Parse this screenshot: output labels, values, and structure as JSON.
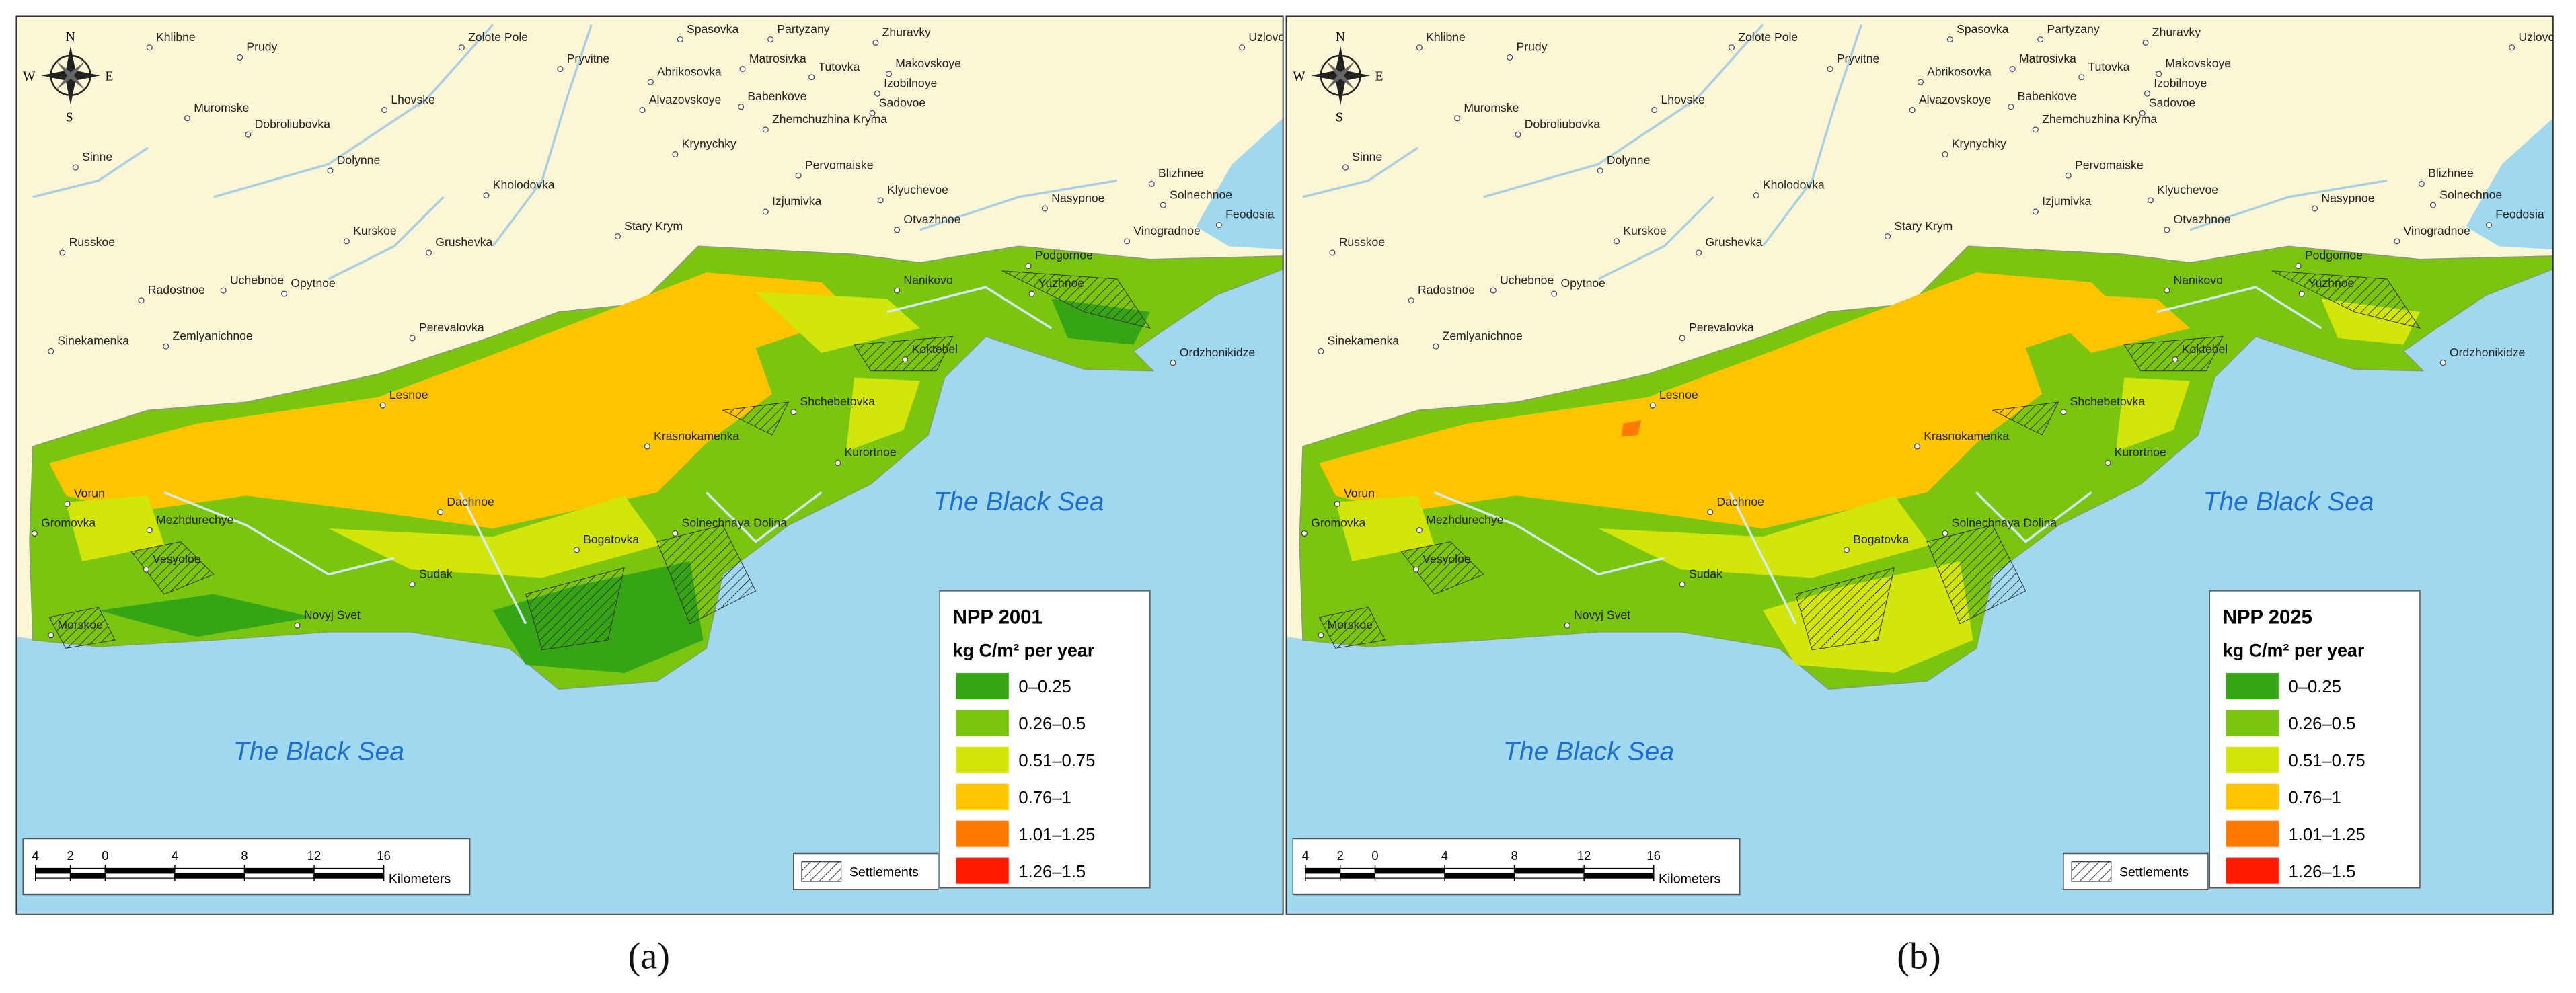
{
  "map": {
    "places": [
      "Khlibne",
      "Prudy",
      "Zolote Pole",
      "Spasovka",
      "Partyzany",
      "Zhuravky",
      "Uzlovoe",
      "Pryvitne",
      "Abrikosovka",
      "Matrosivka",
      "Tutovka",
      "Makovskoye",
      "Izobilnoye",
      "Muromske",
      "Dobroliubovka",
      "Alvazovskoye",
      "Babenkove",
      "Sadovoe",
      "Zhemchuzhina Kryma",
      "Lhovske",
      "Sinne",
      "Dolynne",
      "Krynychky",
      "Pervomaiske",
      "Blizhnee",
      "Kholodovka",
      "Izjumivka",
      "Klyuchevoe",
      "Nasypnoe",
      "Solnechnoe",
      "Otvazhnoe",
      "Stary Krym",
      "Feodosia",
      "Russkoe",
      "Kurskoe",
      "Vinogradnoe",
      "Grushevka",
      "Uchebnoe",
      "Opytnoe",
      "Radostnoe",
      "Podgornoe",
      "Nanikovo",
      "Yuzhnoe",
      "Sinekamenka",
      "Zemlyanichnoe",
      "Perevalovka",
      "Koktebel",
      "Ordzhonikidze",
      "Lesnoe",
      "Shchebetovka",
      "Krasnokamenka",
      "Kurortnoe",
      "Vorun",
      "Dachnoe",
      "Mezhdurechye",
      "Gromovka",
      "Bogatovka",
      "Solnechnaya Dolina",
      "Vesyoloe",
      "Sudak",
      "Novyj Svet",
      "Morskoe"
    ],
    "compass": [
      "N",
      "E",
      "S",
      "W"
    ],
    "settlements_label": "Settlements",
    "scale": {
      "ticks": [
        {
          "value": -4,
          "label": "4"
        },
        {
          "value": -2,
          "label": "2"
        },
        0,
        4,
        8,
        12,
        16
      ],
      "unit": "Kilometers"
    },
    "panels": [
      {
        "caption": "(a)",
        "legend_title": "NPP 2001",
        "legend_unit": "kg C/m² per year",
        "sea_labels": [
          "The Black Sea",
          "The Black Sea"
        ],
        "legend": [
          {
            "label": "0–0.25",
            "color": "#35a516"
          },
          {
            "label": "0.26–0.5",
            "color": "#7ac50f"
          },
          {
            "label": "0.51–0.75",
            "color": "#d2e60c"
          },
          {
            "label": "0.76–1",
            "color": "#ffc400"
          },
          {
            "label": "1.01–1.25",
            "color": "#ff7a00"
          },
          {
            "label": "1.26–1.5",
            "color": "#ff1a00"
          }
        ]
      },
      {
        "caption": "(b)",
        "legend_title": "NPP 2025",
        "legend_unit": "kg C/m² per year",
        "sea_labels": [
          "The Black Sea",
          "The Black Sea"
        ],
        "legend": [
          {
            "label": "0–0.25",
            "color": "#35a516"
          },
          {
            "label": "0.26–0.5",
            "color": "#7ac50f"
          },
          {
            "label": "0.51–0.75",
            "color": "#d2e60c"
          },
          {
            "label": "0.76–1",
            "color": "#ffc400"
          },
          {
            "label": "1.01–1.25",
            "color": "#ff7a00"
          },
          {
            "label": "1.26–1.5",
            "color": "#ff1a00"
          }
        ]
      }
    ]
  }
}
